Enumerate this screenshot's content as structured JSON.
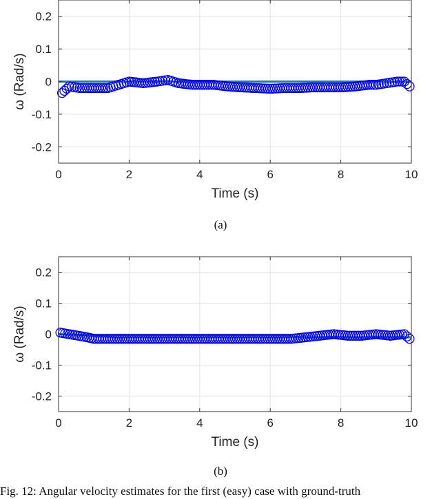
{
  "chart_data": [
    {
      "type": "scatter",
      "panel_label": "(a)",
      "xlabel": "Time (s)",
      "ylabel": "ω (Rad/s)",
      "xlim": [
        0,
        10
      ],
      "ylim": [
        -0.25,
        0.25
      ],
      "xticks": [
        "0",
        "2",
        "4",
        "6",
        "8",
        "10"
      ],
      "yticks": [
        "0.2",
        "0.1",
        "0",
        "-0.1",
        "-0.2"
      ],
      "grid": true,
      "ground_truth_color": "#1f77b4",
      "estimate_color": "#0000ff",
      "ground_truth": {
        "x": [
          0,
          10
        ],
        "y": [
          0,
          0
        ]
      },
      "estimate": {
        "x": [
          0.1,
          0.3,
          0.6,
          1.0,
          1.4,
          1.7,
          2.0,
          2.4,
          2.8,
          3.1,
          3.4,
          3.8,
          4.0,
          4.4,
          4.8,
          5.2,
          5.6,
          6.0,
          6.4,
          6.8,
          7.2,
          7.6,
          8.0,
          8.4,
          8.8,
          9.0,
          9.3,
          9.6,
          9.8,
          9.95
        ],
        "y": [
          -0.035,
          -0.015,
          -0.02,
          -0.02,
          -0.02,
          -0.01,
          0.0,
          -0.005,
          0.0,
          0.005,
          -0.005,
          -0.01,
          -0.01,
          -0.01,
          -0.015,
          -0.018,
          -0.02,
          -0.022,
          -0.02,
          -0.02,
          -0.018,
          -0.018,
          -0.018,
          -0.015,
          -0.01,
          -0.01,
          -0.005,
          0.0,
          0.0,
          -0.015
        ]
      }
    },
    {
      "type": "scatter",
      "panel_label": "(b)",
      "xlabel": "Time (s)",
      "ylabel": "ω (Rad/s)",
      "xlim": [
        0,
        10
      ],
      "ylim": [
        -0.25,
        0.25
      ],
      "xticks": [
        "0",
        "2",
        "4",
        "6",
        "8",
        "10"
      ],
      "yticks": [
        "0.2",
        "0.1",
        "0",
        "-0.1",
        "-0.2"
      ],
      "grid": true,
      "ground_truth_color": "#1f77b4",
      "estimate_color": "#0000ff",
      "ground_truth": {
        "x": [
          0,
          0.8,
          1.6,
          10
        ],
        "y": [
          0,
          -0.003,
          -0.01,
          -0.01
        ]
      },
      "estimate": {
        "x": [
          0.05,
          0.8,
          1.0,
          1.4,
          1.8,
          2.2,
          2.6,
          3.0,
          3.4,
          3.8,
          4.2,
          4.6,
          5.0,
          5.4,
          5.8,
          6.2,
          6.6,
          7.0,
          7.4,
          7.8,
          8.2,
          8.6,
          9.0,
          9.4,
          9.8,
          9.95
        ],
        "y": [
          0.005,
          -0.01,
          -0.015,
          -0.015,
          -0.015,
          -0.015,
          -0.015,
          -0.015,
          -0.015,
          -0.015,
          -0.015,
          -0.015,
          -0.015,
          -0.015,
          -0.015,
          -0.015,
          -0.015,
          -0.01,
          -0.005,
          0.0,
          -0.005,
          -0.005,
          0.0,
          -0.005,
          0.0,
          -0.015
        ]
      }
    }
  ],
  "caption": "Fig. 12: Angular velocity estimates for the first (easy) case with ground-truth"
}
